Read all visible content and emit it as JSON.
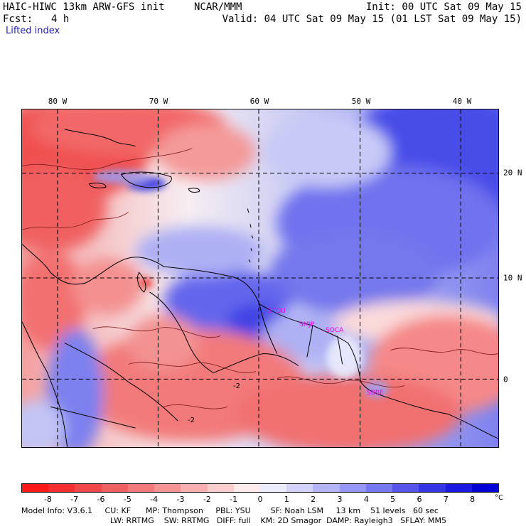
{
  "header": {
    "model": "HAIC-HIWC 13km ARW-GFS init",
    "org": "NCAR/MMM",
    "fcst_label": "Fcst:",
    "fcst_value": "4 h",
    "init": "Init: 00 UTC Sat 09 May 15",
    "valid": "Valid: 04 UTC Sat 09 May 15 (01 LST Sat 09 May 15)",
    "field": "Lifted index"
  },
  "lon_labels": [
    "80 W",
    "70 W",
    "60 W",
    "50 W",
    "40 W"
  ],
  "lat_labels": [
    "20 N",
    "10 N",
    "0"
  ],
  "stations": [
    "STGU",
    "SMJP",
    "SOCA",
    "SBBE"
  ],
  "contour_labels": [
    "-2",
    "-2"
  ],
  "colorbar": {
    "labels": [
      "-8",
      "-7",
      "-6",
      "-5",
      "-4",
      "-3",
      "-2",
      "-1",
      "0",
      "1",
      "2",
      "3",
      "4",
      "5",
      "6",
      "7",
      "8"
    ],
    "unit": "°C",
    "colors": [
      "#ff1a1a",
      "#f52f2f",
      "#f04848",
      "#f06060",
      "#f27a7a",
      "#f59494",
      "#f8b0b0",
      "#fbcdcd",
      "#ffebeb",
      "#ececff",
      "#d2d2fb",
      "#b3b5f7",
      "#9497f4",
      "#7578ee",
      "#5556e9",
      "#3436e6",
      "#1a1ae0",
      "#0000d4"
    ]
  },
  "footer": {
    "line1": "Model Info: V3.6.1     CU: KF      MP: Thompson     PBL: YSU        SF: Noah LSM     13 km    51 levels   60 sec",
    "line2": "LW: RRTMG    SW: RRTMG   DIFF: full    KM: 2D Smagor  DAMP: Rayleigh3   SFLAY: MM5"
  }
}
